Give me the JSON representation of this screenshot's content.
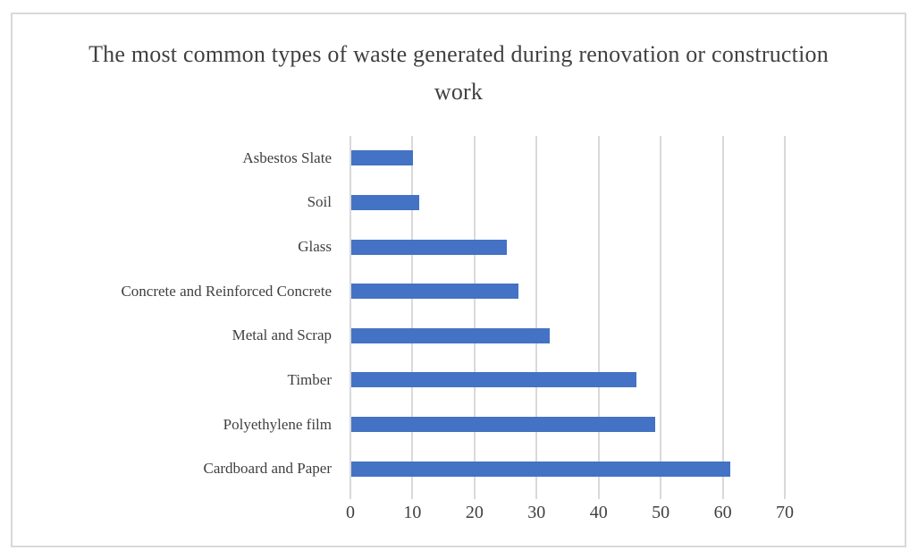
{
  "chart_data": {
    "type": "bar",
    "orientation": "horizontal",
    "title": "The most common types of waste generated during renovation or construction work",
    "categories": [
      "Asbestos Slate",
      "Soil",
      "Glass",
      "Concrete and Reinforced Concrete",
      "Metal and Scrap",
      "Timber",
      "Polyethylene film",
      "Cardboard and Paper"
    ],
    "values": [
      10,
      11,
      25,
      27,
      32,
      46,
      49,
      61
    ],
    "xlabel": "",
    "ylabel": "",
    "xlim": [
      0,
      70
    ],
    "xticks": [
      0,
      10,
      20,
      30,
      40,
      50,
      60,
      70
    ],
    "grid": true,
    "legend": false,
    "colors": {
      "bar": "#4472c4",
      "gridline": "#d9d9d9",
      "text": "#404040",
      "frame_border": "#d9d9d9",
      "background": "#ffffff"
    }
  }
}
